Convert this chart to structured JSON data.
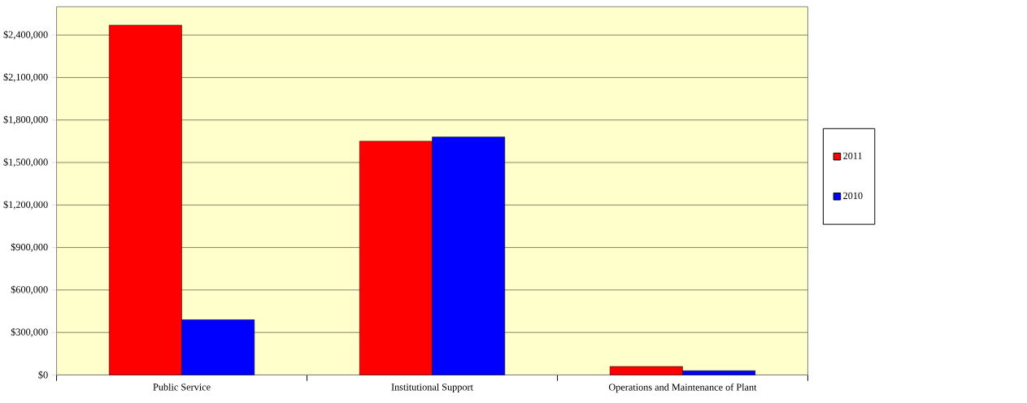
{
  "chart_data": {
    "type": "bar",
    "categories": [
      "Public Service",
      "Institutional Support",
      "Operations and Maintenance of Plant"
    ],
    "series": [
      {
        "name": "2011",
        "color": "#ff0000",
        "values": [
          2470000,
          1650000,
          60000
        ]
      },
      {
        "name": "2010",
        "color": "#0000ff",
        "values": [
          390000,
          1680000,
          30000
        ]
      }
    ],
    "ylim": [
      0,
      2600000
    ],
    "yticks": [
      {
        "value": 0,
        "label": "$0"
      },
      {
        "value": 300000,
        "label": "$300,000"
      },
      {
        "value": 600000,
        "label": "$600,000"
      },
      {
        "value": 900000,
        "label": "$900,000"
      },
      {
        "value": 1200000,
        "label": "$1,200,000"
      },
      {
        "value": 1500000,
        "label": "$1,500,000"
      },
      {
        "value": 1800000,
        "label": "$1,800,000"
      },
      {
        "value": 2100000,
        "label": "$2,100,000"
      },
      {
        "value": 2400000,
        "label": "$2,400,000"
      }
    ],
    "grid": "y",
    "legend": "right"
  }
}
